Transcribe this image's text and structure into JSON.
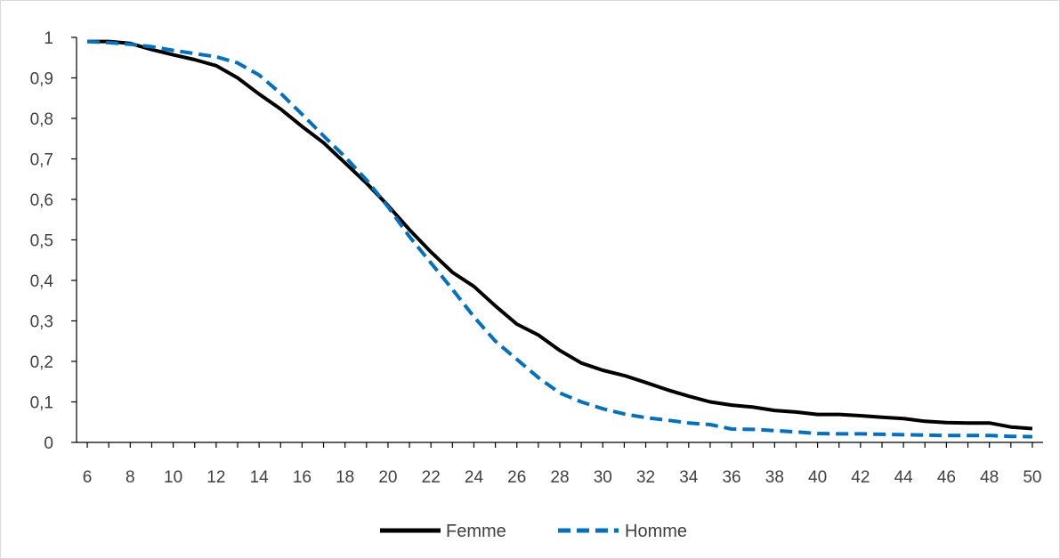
{
  "chart_data": {
    "type": "line",
    "title": "",
    "xlabel": "",
    "ylabel": "",
    "x": [
      6,
      7,
      8,
      9,
      10,
      11,
      12,
      13,
      14,
      15,
      16,
      17,
      18,
      19,
      20,
      21,
      22,
      23,
      24,
      25,
      26,
      27,
      28,
      29,
      30,
      31,
      32,
      33,
      34,
      35,
      36,
      37,
      38,
      39,
      40,
      41,
      42,
      43,
      44,
      45,
      46,
      47,
      48,
      49,
      50
    ],
    "x_ticks": [
      6,
      8,
      10,
      12,
      14,
      16,
      18,
      20,
      22,
      24,
      26,
      28,
      30,
      32,
      34,
      36,
      38,
      40,
      42,
      44,
      46,
      48,
      50
    ],
    "x_tick_labels": [
      "6",
      "8",
      "10",
      "12",
      "14",
      "16",
      "18",
      "20",
      "22",
      "24",
      "26",
      "28",
      "30",
      "32",
      "34",
      "36",
      "38",
      "40",
      "42",
      "44",
      "46",
      "48",
      "50"
    ],
    "xlim": [
      5.5,
      50.5
    ],
    "y_ticks": [
      0,
      0.1,
      0.2,
      0.3,
      0.4,
      0.5,
      0.6,
      0.7,
      0.8,
      0.9,
      1
    ],
    "y_tick_labels": [
      "0",
      "0,1",
      "0,2",
      "0,3",
      "0,4",
      "0,5",
      "0,6",
      "0,7",
      "0,8",
      "0,9",
      "1"
    ],
    "ylim": [
      0,
      1
    ],
    "grid": false,
    "legend_position": "bottom",
    "series": [
      {
        "name": "Femme",
        "style": "solid",
        "color": "#000000",
        "values": [
          0.99,
          0.99,
          0.985,
          0.97,
          0.957,
          0.945,
          0.93,
          0.9,
          0.86,
          0.823,
          0.78,
          0.74,
          0.69,
          0.64,
          0.585,
          0.525,
          0.47,
          0.42,
          0.385,
          0.337,
          0.292,
          0.265,
          0.227,
          0.196,
          0.178,
          0.165,
          0.148,
          0.13,
          0.114,
          0.1,
          0.092,
          0.087,
          0.079,
          0.075,
          0.069,
          0.069,
          0.066,
          0.062,
          0.059,
          0.052,
          0.049,
          0.048,
          0.048,
          0.038,
          0.034
        ]
      },
      {
        "name": "Homme",
        "style": "dashed",
        "color": "#0070c0",
        "values": [
          0.99,
          0.987,
          0.983,
          0.977,
          0.968,
          0.96,
          0.952,
          0.937,
          0.907,
          0.862,
          0.81,
          0.757,
          0.705,
          0.648,
          0.582,
          0.508,
          0.443,
          0.378,
          0.31,
          0.25,
          0.205,
          0.16,
          0.122,
          0.1,
          0.083,
          0.07,
          0.061,
          0.055,
          0.048,
          0.044,
          0.033,
          0.032,
          0.029,
          0.026,
          0.022,
          0.021,
          0.021,
          0.02,
          0.019,
          0.018,
          0.017,
          0.017,
          0.017,
          0.015,
          0.014
        ]
      }
    ]
  }
}
